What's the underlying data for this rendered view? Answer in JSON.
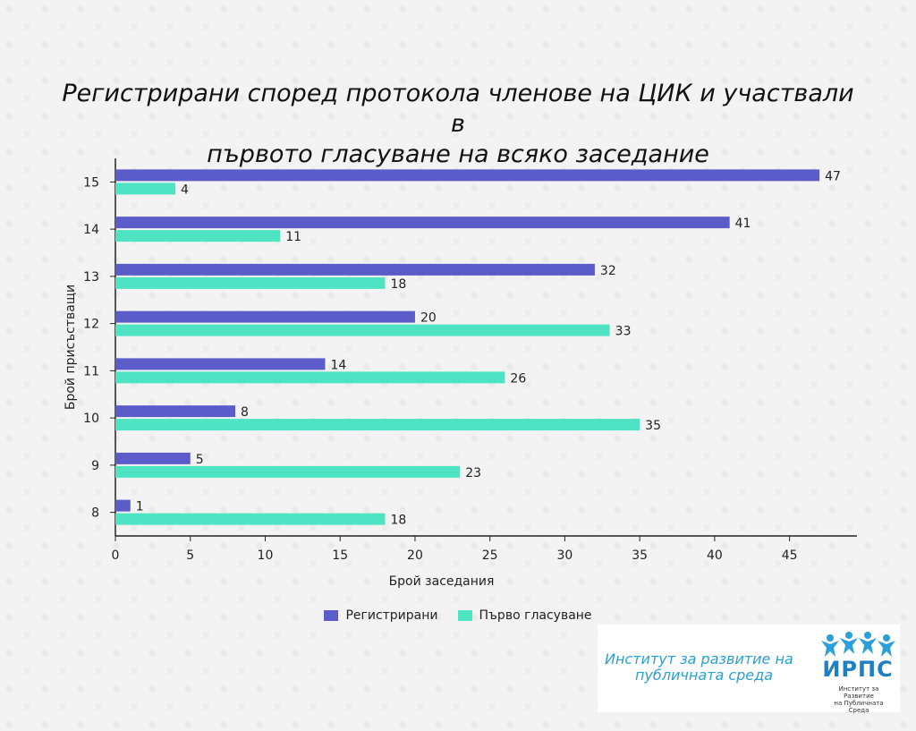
{
  "chart_data": {
    "type": "bar",
    "orientation": "horizontal",
    "title": "Регистрирани според протокола членове на ЦИК и участвали в първото гласуване на всяко заседание",
    "title_lines": [
      "Регистрирани според протокола членове на ЦИК и участвали в",
      "първото гласуване на всяко заседание"
    ],
    "xlabel": "Брой заседания",
    "ylabel": "Брой присъстващи",
    "categories": [
      "15",
      "14",
      "13",
      "12",
      "11",
      "10",
      "9",
      "8"
    ],
    "series": [
      {
        "name": "Регистрирани",
        "color": "#5b5bc9",
        "values": [
          47,
          41,
          32,
          20,
          14,
          8,
          5,
          1
        ]
      },
      {
        "name": "Първо гласуване",
        "color": "#4ee3c2",
        "values": [
          4,
          11,
          18,
          33,
          26,
          35,
          23,
          18
        ]
      }
    ],
    "x_ticks": [
      0,
      5,
      10,
      15,
      20,
      25,
      30,
      35,
      40,
      45
    ],
    "xlim": [
      0,
      49.5
    ],
    "grid": false,
    "legend_position": "bottom"
  },
  "logo": {
    "text_line1": "Институт за развитие на",
    "text_line2": "публичната среда",
    "abbr": "ИРПС",
    "small_line1": "Институт за Развитие",
    "small_line2": "на Публичната Среда",
    "color": "#2a9fd8"
  }
}
